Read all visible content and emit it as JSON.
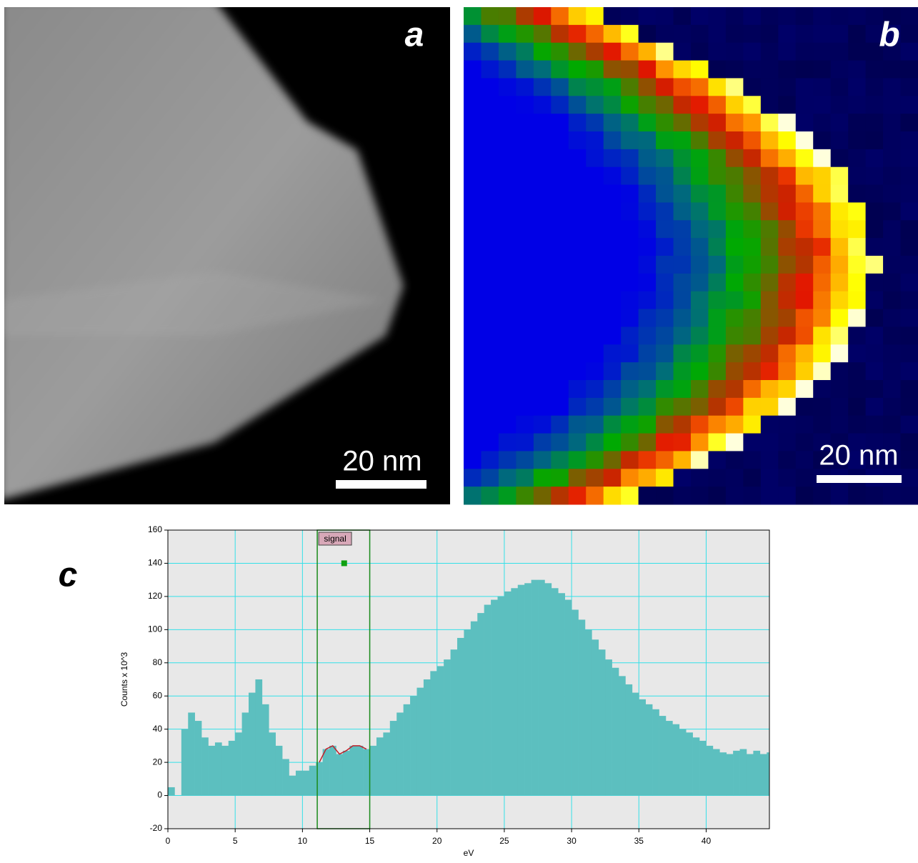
{
  "panels": {
    "a": {
      "label": "a",
      "scale_bar": "20 nm"
    },
    "b": {
      "label": "b",
      "scale_bar": "20 nm"
    },
    "c": {
      "label": "c"
    }
  },
  "chart_data": {
    "type": "histogram",
    "xlabel": "eV",
    "ylabel": "Counts x 10^3",
    "color": "#5cbfbf",
    "background": "#e8e8e8",
    "grid": true,
    "grid_color": "#33e0e8",
    "xlim": [
      0,
      44.7
    ],
    "ylim": [
      -20,
      160
    ],
    "xticks": [
      0,
      5,
      10,
      15,
      20,
      25,
      30,
      35,
      40
    ],
    "yticks": [
      -20,
      0,
      20,
      40,
      60,
      80,
      100,
      120,
      140,
      160
    ],
    "bins": [
      0,
      0.5,
      1,
      1.5,
      2,
      2.5,
      3,
      3.5,
      4,
      4.5,
      5,
      5.5,
      6,
      6.5,
      7,
      7.5,
      8,
      8.5,
      9,
      9.5,
      10,
      10.5,
      11,
      11.5,
      12,
      12.5,
      13,
      13.5,
      14,
      14.5,
      15,
      15.5,
      16,
      16.5,
      17,
      17.5,
      18,
      18.5,
      19,
      19.5,
      20,
      20.5,
      21,
      21.5,
      22,
      22.5,
      23,
      23.5,
      24,
      24.5,
      25,
      25.5,
      26,
      26.5,
      27,
      27.5,
      28,
      28.5,
      29,
      29.5,
      30,
      30.5,
      31,
      31.5,
      32,
      32.5,
      33,
      33.5,
      34,
      34.5,
      35,
      35.5,
      36,
      36.5,
      37,
      37.5,
      38,
      38.5,
      39,
      39.5,
      40,
      40.5,
      41,
      41.5,
      42,
      42.5,
      43,
      43.5,
      44,
      44.5,
      44.7
    ],
    "values": [
      5,
      0,
      40,
      50,
      45,
      35,
      30,
      32,
      30,
      33,
      38,
      50,
      62,
      70,
      55,
      38,
      30,
      22,
      12,
      15,
      15,
      18,
      20,
      28,
      30,
      25,
      27,
      30,
      30,
      28,
      30,
      35,
      38,
      45,
      50,
      55,
      60,
      65,
      70,
      75,
      78,
      82,
      88,
      95,
      100,
      105,
      110,
      115,
      118,
      120,
      123,
      125,
      127,
      128,
      130,
      130,
      128,
      125,
      122,
      118,
      112,
      106,
      100,
      94,
      88,
      82,
      77,
      72,
      67,
      62,
      58,
      55,
      52,
      48,
      45,
      43,
      40,
      38,
      35,
      33,
      30,
      28,
      26,
      25,
      27,
      28,
      25,
      27,
      25,
      26
    ],
    "signal": {
      "label": "signal",
      "range": [
        11.1,
        15
      ],
      "color": "#1a8a1a",
      "line_color": "#c0202a"
    },
    "marker": {
      "x": 13.1,
      "y": 140,
      "color": "#10a010"
    }
  }
}
